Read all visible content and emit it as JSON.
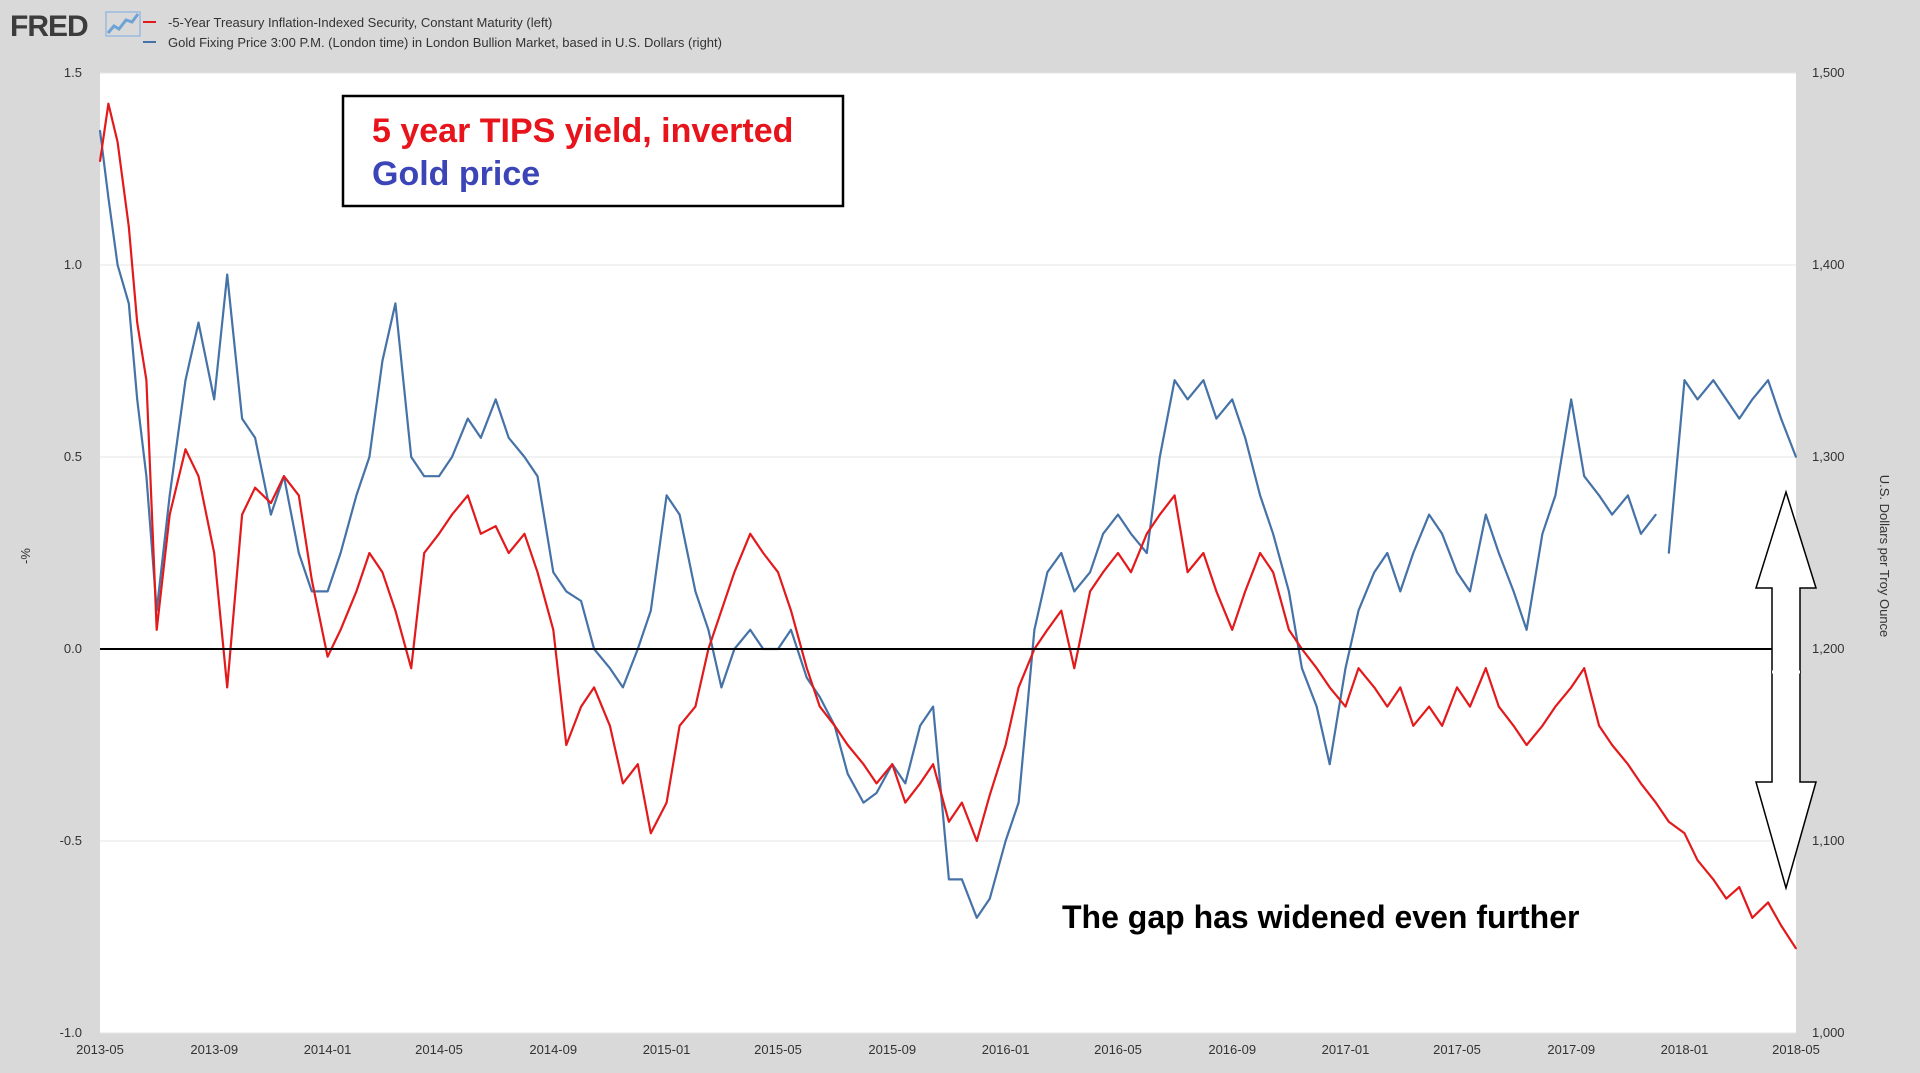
{
  "header": {
    "logo": "FRED",
    "legend": [
      {
        "label": "-5-Year Treasury Inflation-Indexed Security, Constant Maturity (left)",
        "color": "#e31a1c"
      },
      {
        "label": "Gold Fixing Price 3:00 P.M. (London time) in London Bullion Market, based in U.S. Dollars (right)",
        "color": "#4572a7"
      }
    ]
  },
  "annotations": {
    "box_line1": "5 year TIPS yield, inverted",
    "box_line1_color": "#e8141c",
    "box_line2": "Gold price",
    "box_line2_color": "#3b45b8",
    "gap_text": "The gap has widened even further"
  },
  "chart_data": {
    "type": "line",
    "x_ticks": [
      "2013-05",
      "2013-09",
      "2014-01",
      "2014-05",
      "2014-09",
      "2015-01",
      "2015-05",
      "2015-09",
      "2016-01",
      "2016-05",
      "2016-09",
      "2017-01",
      "2017-05",
      "2017-09",
      "2018-01",
      "2018-05"
    ],
    "y_left": {
      "label": "-%",
      "ticks": [
        "1.5",
        "1.0",
        "0.5",
        "0.0",
        "-0.5",
        "-1.0"
      ],
      "ylim": [
        -1.0,
        1.5
      ]
    },
    "y_right": {
      "label": "U.S. Dollars per Troy Ounce",
      "ticks": [
        "1,500",
        "1,400",
        "1,300",
        "1,200",
        "1,100",
        "1,000"
      ],
      "ylim": [
        1000,
        1500
      ]
    },
    "xlim": [
      "2013-05",
      "2018-05"
    ],
    "grid": true,
    "zero_line": 0.0,
    "series": [
      {
        "name": "-5-Year Treasury Inflation-Indexed Security, Constant Maturity (left)",
        "axis": "left",
        "color": "#e31a1c",
        "x": [
          "2013-05",
          "2013-05-10",
          "2013-05-20",
          "2013-06",
          "2013-06-10",
          "2013-06-20",
          "2013-07",
          "2013-07-15",
          "2013-08",
          "2013-08-15",
          "2013-09",
          "2013-09-15",
          "2013-10",
          "2013-10-15",
          "2013-11",
          "2013-11-15",
          "2013-12",
          "2013-12-15",
          "2014-01",
          "2014-01-15",
          "2014-02",
          "2014-02-15",
          "2014-03",
          "2014-03-15",
          "2014-04",
          "2014-04-15",
          "2014-05",
          "2014-05-15",
          "2014-06",
          "2014-06-15",
          "2014-07",
          "2014-07-15",
          "2014-08",
          "2014-08-15",
          "2014-09",
          "2014-09-15",
          "2014-10",
          "2014-10-15",
          "2014-11",
          "2014-11-15",
          "2014-12",
          "2014-12-15",
          "2015-01",
          "2015-01-15",
          "2015-02",
          "2015-02-15",
          "2015-03",
          "2015-03-15",
          "2015-04",
          "2015-04-15",
          "2015-05",
          "2015-05-15",
          "2015-06",
          "2015-06-15",
          "2015-07",
          "2015-07-15",
          "2015-08",
          "2015-08-15",
          "2015-09",
          "2015-09-15",
          "2015-10",
          "2015-10-15",
          "2015-11",
          "2015-11-15",
          "2015-12",
          "2015-12-15",
          "2016-01",
          "2016-01-15",
          "2016-02",
          "2016-02-15",
          "2016-03",
          "2016-03-15",
          "2016-04",
          "2016-04-15",
          "2016-05",
          "2016-05-15",
          "2016-06",
          "2016-06-15",
          "2016-07",
          "2016-07-15",
          "2016-08",
          "2016-08-15",
          "2016-09",
          "2016-09-15",
          "2016-10",
          "2016-10-15",
          "2016-11",
          "2016-11-15",
          "2016-12",
          "2016-12-15",
          "2017-01",
          "2017-01-15",
          "2017-02",
          "2017-02-15",
          "2017-03",
          "2017-03-15",
          "2017-04",
          "2017-04-15",
          "2017-05",
          "2017-05-15",
          "2017-06",
          "2017-06-15",
          "2017-07",
          "2017-07-15",
          "2017-08",
          "2017-08-15",
          "2017-09",
          "2017-09-15",
          "2017-10",
          "2017-10-15",
          "2017-11",
          "2017-11-15",
          "2017-12",
          "2017-12-15",
          "2018-01",
          "2018-01-15",
          "2018-02",
          "2018-02-15",
          "2018-03",
          "2018-03-15",
          "2018-04",
          "2018-04-15",
          "2018-05"
        ],
        "values": [
          1.27,
          1.42,
          1.32,
          1.1,
          0.85,
          0.7,
          0.05,
          0.35,
          0.52,
          0.45,
          0.25,
          -0.1,
          0.35,
          0.42,
          0.38,
          0.45,
          0.4,
          0.18,
          -0.02,
          0.05,
          0.15,
          0.25,
          0.2,
          0.1,
          -0.05,
          0.25,
          0.3,
          0.35,
          0.4,
          0.3,
          0.32,
          0.25,
          0.3,
          0.2,
          0.05,
          -0.25,
          -0.15,
          -0.1,
          -0.2,
          -0.35,
          -0.3,
          -0.48,
          -0.4,
          -0.2,
          -0.15,
          0.0,
          0.1,
          0.2,
          0.3,
          0.25,
          0.2,
          0.1,
          -0.05,
          -0.15,
          -0.2,
          -0.25,
          -0.3,
          -0.35,
          -0.3,
          -0.4,
          -0.35,
          -0.3,
          -0.45,
          -0.4,
          -0.5,
          -0.38,
          -0.25,
          -0.1,
          0.0,
          0.05,
          0.1,
          -0.05,
          0.15,
          0.2,
          0.25,
          0.2,
          0.3,
          0.35,
          0.4,
          0.2,
          0.25,
          0.15,
          0.05,
          0.15,
          0.25,
          0.2,
          0.05,
          0.0,
          -0.05,
          -0.1,
          -0.15,
          -0.05,
          -0.1,
          -0.15,
          -0.1,
          -0.2,
          -0.15,
          -0.2,
          -0.1,
          -0.15,
          -0.05,
          -0.15,
          -0.2,
          -0.25,
          -0.2,
          -0.15,
          -0.1,
          -0.05,
          -0.2,
          -0.25,
          -0.3,
          -0.35,
          -0.4,
          -0.45,
          -0.48,
          -0.55,
          -0.6,
          -0.65,
          -0.62,
          -0.7,
          -0.66,
          -0.72,
          -0.78
        ],
        "gap_from": null
      },
      {
        "name": "Gold Fixing Price 3:00 P.M. (London time) in London Bullion Market, based in U.S. Dollars (right)",
        "axis": "right",
        "color": "#4572a7",
        "x": [
          "2013-05",
          "2013-05-10",
          "2013-05-20",
          "2013-06",
          "2013-06-10",
          "2013-06-20",
          "2013-07",
          "2013-07-15",
          "2013-08",
          "2013-08-15",
          "2013-09",
          "2013-09-15",
          "2013-10",
          "2013-10-15",
          "2013-11",
          "2013-11-15",
          "2013-12",
          "2013-12-15",
          "2014-01",
          "2014-01-15",
          "2014-02",
          "2014-02-15",
          "2014-03",
          "2014-03-15",
          "2014-04",
          "2014-04-15",
          "2014-05",
          "2014-05-15",
          "2014-06",
          "2014-06-15",
          "2014-07",
          "2014-07-15",
          "2014-08",
          "2014-08-15",
          "2014-09",
          "2014-09-15",
          "2014-10",
          "2014-10-15",
          "2014-11",
          "2014-11-15",
          "2014-12",
          "2014-12-15",
          "2015-01",
          "2015-01-15",
          "2015-02",
          "2015-02-15",
          "2015-03",
          "2015-03-15",
          "2015-04",
          "2015-04-15",
          "2015-05",
          "2015-05-15",
          "2015-06",
          "2015-06-15",
          "2015-07",
          "2015-07-15",
          "2015-08",
          "2015-08-15",
          "2015-09",
          "2015-09-15",
          "2015-10",
          "2015-10-15",
          "2015-11",
          "2015-11-15",
          "2015-12",
          "2015-12-15",
          "2016-01",
          "2016-01-15",
          "2016-02",
          "2016-02-15",
          "2016-03",
          "2016-03-15",
          "2016-04",
          "2016-04-15",
          "2016-05",
          "2016-05-15",
          "2016-06",
          "2016-06-15",
          "2016-07",
          "2016-07-15",
          "2016-08",
          "2016-08-15",
          "2016-09",
          "2016-09-15",
          "2016-10",
          "2016-10-15",
          "2016-11",
          "2016-11-15",
          "2016-12",
          "2016-12-15",
          "2017-01",
          "2017-01-15",
          "2017-02",
          "2017-02-15",
          "2017-03",
          "2017-03-15",
          "2017-04",
          "2017-04-15",
          "2017-05",
          "2017-05-15",
          "2017-06",
          "2017-06-15",
          "2017-07",
          "2017-07-15",
          "2017-08",
          "2017-08-15",
          "2017-09",
          "2017-09-15",
          "2017-10",
          "2017-10-15",
          "2017-11",
          "2017-11-15",
          "2017-12",
          "2017-12-15",
          "2018-01",
          "2018-01-15",
          "2018-02",
          "2018-02-15",
          "2018-03",
          "2018-03-15",
          "2018-04",
          "2018-04-15",
          "2018-05"
        ],
        "values": [
          1470,
          1435,
          1400,
          1380,
          1330,
          1290,
          1220,
          1280,
          1340,
          1370,
          1330,
          1395,
          1320,
          1310,
          1270,
          1290,
          1250,
          1230,
          1230,
          1250,
          1280,
          1300,
          1350,
          1380,
          1300,
          1290,
          1290,
          1300,
          1320,
          1310,
          1330,
          1310,
          1300,
          1290,
          1240,
          1230,
          1225,
          1200,
          1190,
          1180,
          1200,
          1220,
          1280,
          1270,
          1230,
          1210,
          1180,
          1200,
          1210,
          1200,
          1200,
          1210,
          1185,
          1175,
          1160,
          1135,
          1120,
          1125,
          1140,
          1130,
          1160,
          1170,
          1080,
          1080,
          1060,
          1070,
          1100,
          1120,
          1210,
          1240,
          1250,
          1230,
          1240,
          1260,
          1270,
          1260,
          1250,
          1300,
          1340,
          1330,
          1340,
          1320,
          1330,
          1310,
          1280,
          1260,
          1230,
          1190,
          1170,
          1140,
          1190,
          1220,
          1240,
          1250,
          1230,
          1250,
          1270,
          1260,
          1240,
          1230,
          1270,
          1250,
          1230,
          1210,
          1260,
          1280,
          1330,
          1290,
          1280,
          1270,
          1280,
          1260,
          1270,
          1250,
          1340,
          1330,
          1340,
          1330,
          1320,
          1330,
          1340,
          1320,
          1300
        ],
        "gap_from": "2017-12-10"
      }
    ]
  }
}
